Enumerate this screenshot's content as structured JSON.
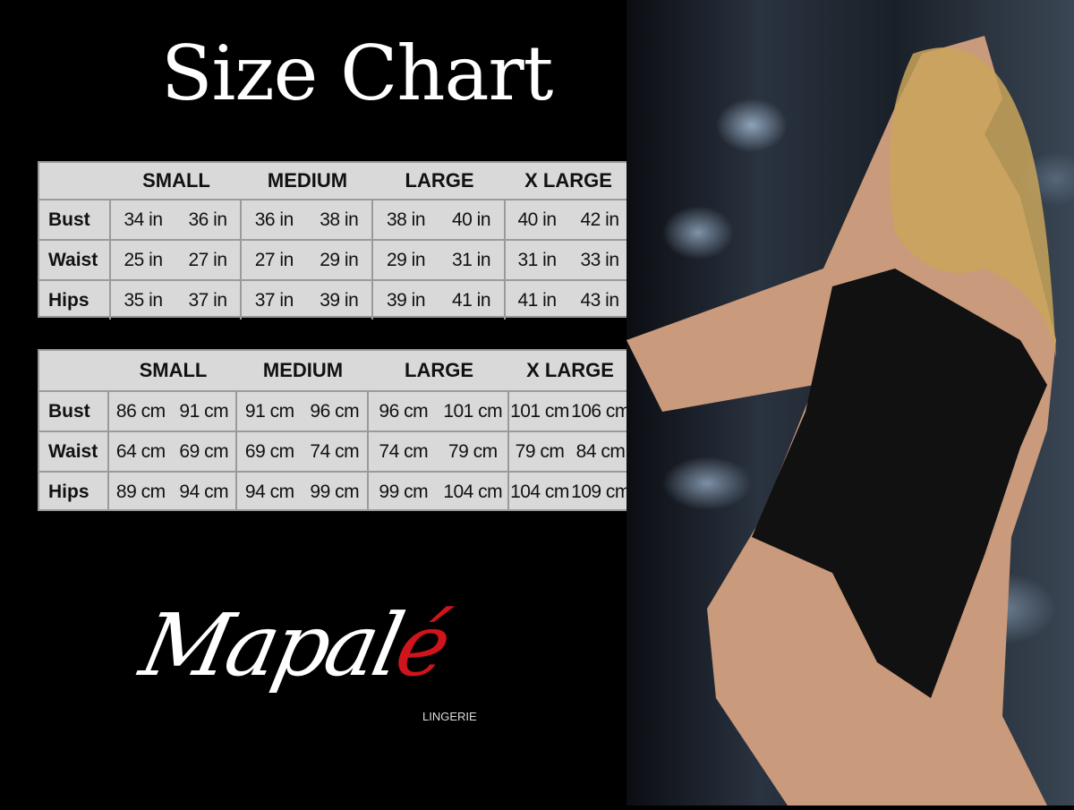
{
  "title": "Size Chart",
  "inch_table": {
    "sizes": [
      "SMALL",
      "MEDIUM",
      "LARGE",
      "X LARGE"
    ],
    "rows": [
      {
        "label": "Bust",
        "values": [
          "34 in",
          "36 in",
          "36 in",
          "38 in",
          "38 in",
          "40 in",
          "40 in",
          "42 in"
        ]
      },
      {
        "label": "Waist",
        "values": [
          "25 in",
          "27 in",
          "27 in",
          "29 in",
          "29 in",
          "31 in",
          "31 in",
          "33 in"
        ]
      },
      {
        "label": "Hips",
        "values": [
          "35 in",
          "37 in",
          "37 in",
          "39 in",
          "39 in",
          "41 in",
          "41 in",
          "43 in"
        ]
      }
    ]
  },
  "cm_table": {
    "sizes": [
      "SMALL",
      "MEDIUM",
      "LARGE",
      "X LARGE"
    ],
    "rows": [
      {
        "label": "Bust",
        "values": [
          "86 cm",
          "91 cm",
          "91 cm",
          "96 cm",
          "96 cm",
          "101 cm",
          "101 cm",
          "106 cm"
        ]
      },
      {
        "label": "Waist",
        "values": [
          "64 cm",
          "69 cm",
          "69 cm",
          "74 cm",
          "74 cm",
          "79 cm",
          "79 cm",
          "84 cm"
        ]
      },
      {
        "label": "Hips",
        "values": [
          "89 cm",
          "94 cm",
          "94 cm",
          "99 cm",
          "99 cm",
          "104 cm",
          "104 cm",
          "109 cm"
        ]
      }
    ]
  },
  "logo": {
    "text": "Mapalé",
    "subtitle": "LINGERIE",
    "accent_color": "#d0141b"
  }
}
